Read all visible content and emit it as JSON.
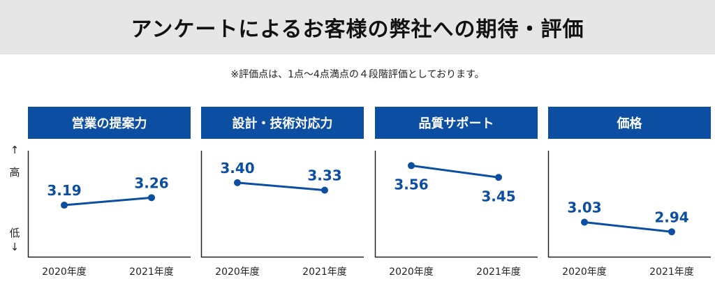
{
  "banner": {
    "title": "アンケートによるお客様の弊社への期待・評価"
  },
  "note": "※評価点は、1点〜4点満点の４段階評価としております。",
  "y_axis": {
    "high_label": "高",
    "low_label": "低",
    "up_arrow": "↑",
    "down_arrow": "↓"
  },
  "colors": {
    "accent": "#0b4ea2",
    "header_bg": "#0b4ea2",
    "banner_bg": "#e6e6e6",
    "axis": "#222222"
  },
  "chart_data": [
    {
      "type": "line",
      "title": "営業の提案力",
      "categories": [
        "2020年度",
        "2021年度"
      ],
      "series": [
        {
          "values": [
            3.19,
            3.26
          ]
        }
      ],
      "data_labels": [
        "3.19",
        "3.26"
      ],
      "ylim": [
        2.7,
        3.7
      ],
      "grid": false,
      "label_position": "above"
    },
    {
      "type": "line",
      "title": "設計・技術対応力",
      "categories": [
        "2020年度",
        "2021年度"
      ],
      "series": [
        {
          "values": [
            3.4,
            3.33
          ]
        }
      ],
      "data_labels": [
        "3.40",
        "3.33"
      ],
      "ylim": [
        2.7,
        3.7
      ],
      "grid": false,
      "label_position": "above"
    },
    {
      "type": "line",
      "title": "品質サポート",
      "categories": [
        "2020年度",
        "2021年度"
      ],
      "series": [
        {
          "values": [
            3.56,
            3.45
          ]
        }
      ],
      "data_labels": [
        "3.56",
        "3.45"
      ],
      "ylim": [
        2.7,
        3.7
      ],
      "grid": false,
      "label_position": "below"
    },
    {
      "type": "line",
      "title": "価格",
      "categories": [
        "2020年度",
        "2021年度"
      ],
      "series": [
        {
          "values": [
            3.03,
            2.94
          ]
        }
      ],
      "data_labels": [
        "3.03",
        "2.94"
      ],
      "ylim": [
        2.7,
        3.7
      ],
      "grid": false,
      "label_position": "above"
    }
  ]
}
